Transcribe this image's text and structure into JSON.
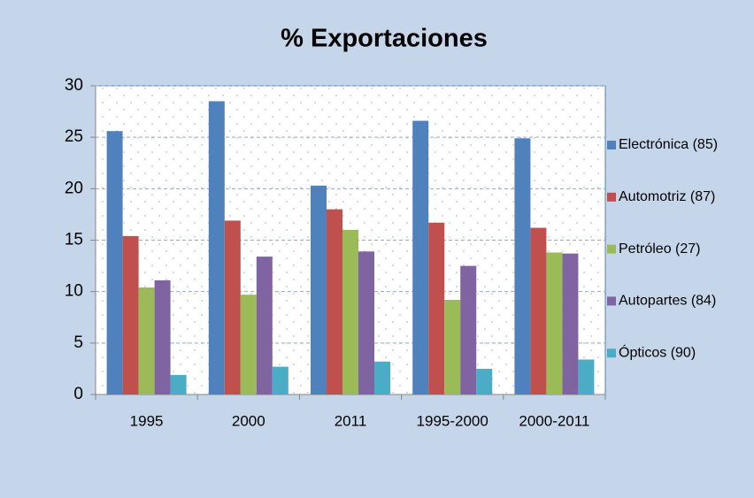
{
  "chart_data": {
    "type": "bar",
    "title": "% Exportaciones",
    "categories": [
      "1995",
      "2000",
      "2011",
      "1995-2000",
      "2000-2011"
    ],
    "series": [
      {
        "name": "Electrónica (85)",
        "color": "#4f81bd",
        "values": [
          25.6,
          28.5,
          20.3,
          26.6,
          24.9
        ]
      },
      {
        "name": "Automotriz (87)",
        "color": "#c0504d",
        "values": [
          15.4,
          16.9,
          18.0,
          16.7,
          16.2
        ]
      },
      {
        "name": "Petróleo (27)",
        "color": "#9bbb59",
        "values": [
          10.4,
          9.7,
          16.0,
          9.2,
          13.8
        ]
      },
      {
        "name": "Autopartes (84)",
        "color": "#8064a2",
        "values": [
          11.1,
          13.4,
          13.9,
          12.5,
          13.7
        ]
      },
      {
        "name": "Ópticos (90)",
        "color": "#4bacc6",
        "values": [
          1.9,
          2.7,
          3.2,
          2.5,
          3.4
        ]
      }
    ],
    "ylim": [
      0,
      30
    ],
    "yticks": [
      0,
      5,
      10,
      15,
      20,
      25,
      30
    ],
    "grid": true,
    "legend": "right"
  }
}
